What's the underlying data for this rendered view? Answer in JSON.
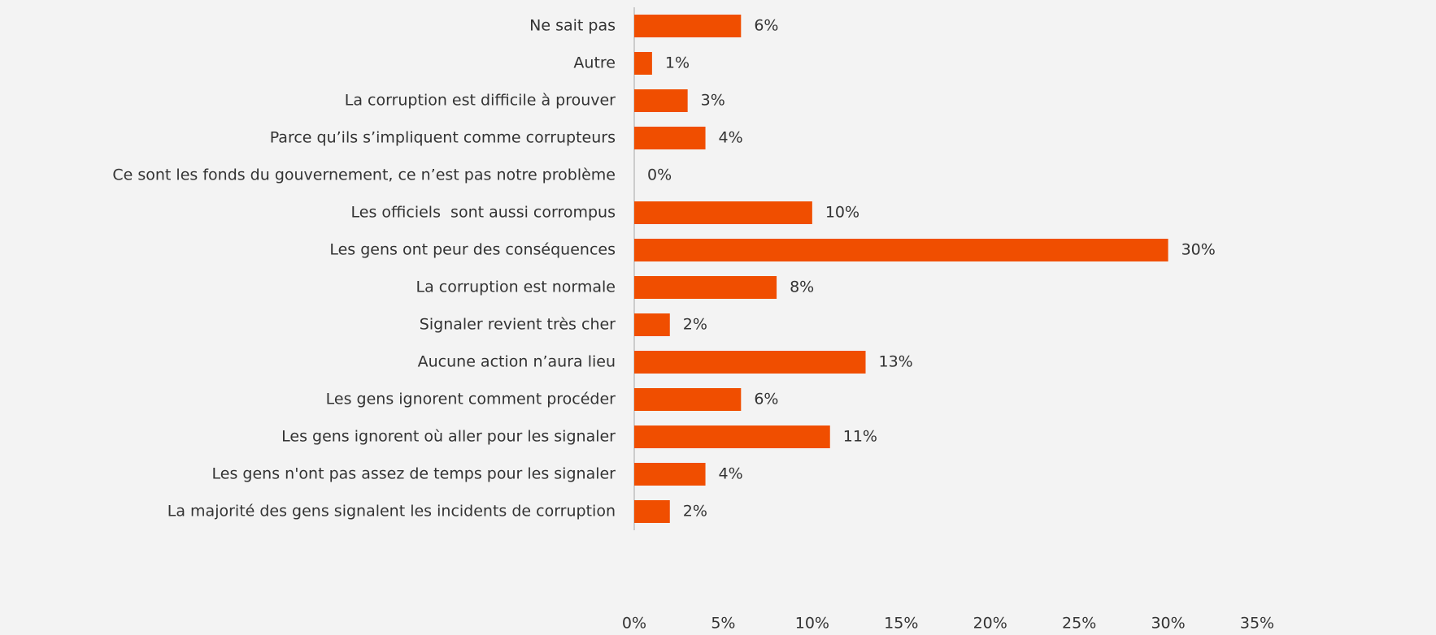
{
  "chart_data": {
    "type": "bar",
    "orientation": "horizontal",
    "categories": [
      "Ne sait pas",
      "Autre",
      "La corruption est difficile à prouver",
      "Parce qu’ils s’impliquent comme corrupteurs",
      "Ce sont les fonds du gouvernement, ce n’est pas notre problème",
      "Les officiels  sont aussi corrompus",
      "Les gens ont peur des conséquences",
      "La corruption est normale",
      "Signaler revient très cher",
      "Aucune action n’aura lieu",
      "Les gens ignorent comment procéder",
      "Les gens ignorent où aller pour les signaler",
      "Les gens n'ont pas assez de temps pour les signaler",
      "La majorité des gens signalent les incidents de corruption"
    ],
    "values": [
      6,
      1,
      3,
      4,
      0,
      10,
      30,
      8,
      2,
      13,
      6,
      11,
      4,
      2
    ],
    "value_labels": [
      "6%",
      "1%",
      "3%",
      "4%",
      "0%",
      "10%",
      "30%",
      "8%",
      "2%",
      "13%",
      "6%",
      "11%",
      "4%",
      "2%"
    ],
    "color": "#f04e00",
    "xlim": [
      0,
      35
    ],
    "xticks": [
      {
        "value": 0,
        "label": "0%"
      },
      {
        "value": 5,
        "label": "5%"
      },
      {
        "value": 10,
        "label": "10%"
      },
      {
        "value": 15,
        "label": "15%"
      },
      {
        "value": 20,
        "label": "20%"
      },
      {
        "value": 25,
        "label": "25%"
      },
      {
        "value": 30,
        "label": "30%"
      },
      {
        "value": 35,
        "label": "35%"
      }
    ],
    "grid": false
  }
}
